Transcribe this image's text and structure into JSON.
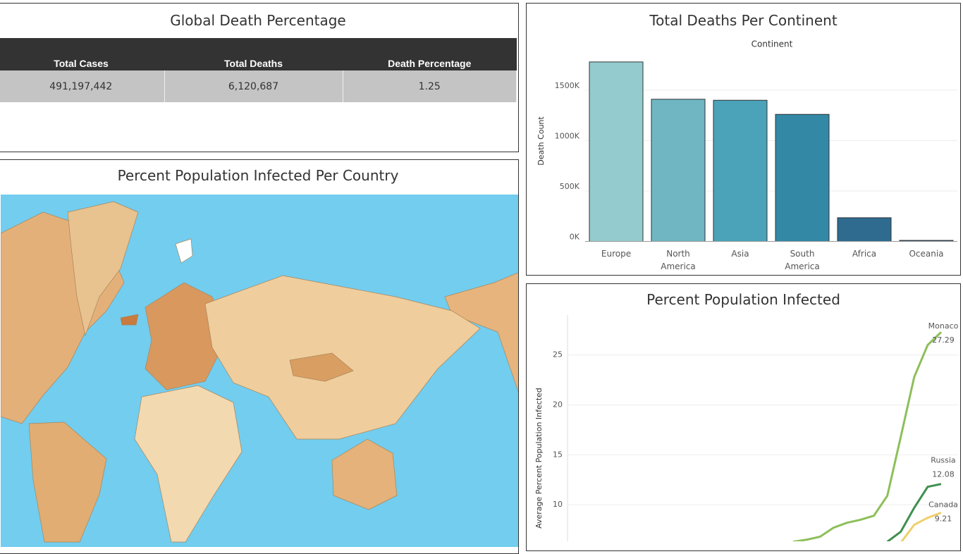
{
  "dashboard": {
    "table": {
      "title": "Global Death Percentage",
      "columns": [
        "Total Cases",
        "Total Deaths",
        "Death Percentage"
      ],
      "rows": [
        [
          "491,197,442",
          "6,120,687",
          "1.25"
        ]
      ]
    },
    "map": {
      "title": "Percent Population Infected Per Country"
    }
  },
  "chart_data": [
    {
      "type": "bar",
      "title": "Total Deaths Per Continent",
      "x_label": "Continent",
      "y_label": "Death Count",
      "categories": [
        "Europe",
        "North America",
        "Asia",
        "South America",
        "Africa",
        "Oceania"
      ],
      "values": [
        1780000,
        1410000,
        1400000,
        1260000,
        235000,
        10000
      ],
      "colors": [
        "#93cbcf",
        "#6fb6c2",
        "#4aa3b8",
        "#3388a6",
        "#2e6b8f",
        "#2a5a80"
      ],
      "ylim": [
        0,
        1870000
      ],
      "yticks": [
        {
          "value": 0,
          "label": "0K"
        },
        {
          "value": 500000,
          "label": "500K"
        },
        {
          "value": 1000000,
          "label": "1000K"
        },
        {
          "value": 1500000,
          "label": "1500K"
        }
      ],
      "grid": true
    },
    {
      "type": "line",
      "title": "Percent Population Infected",
      "y_label": "Average Percent Population Infected",
      "categories": [
        null,
        null,
        null,
        null,
        null,
        null,
        null,
        null,
        null,
        null,
        null,
        null
      ],
      "series": [
        {
          "name": "Monaco",
          "color": "#8dbf5a",
          "values": [
            6.3,
            6.5,
            6.8,
            7.7,
            8.2,
            8.5,
            8.9,
            10.9,
            16.8,
            22.8,
            26.0,
            27.29
          ]
        },
        {
          "name": "Russia",
          "color": "#3e8f4f",
          "values": [
            null,
            null,
            null,
            null,
            null,
            null,
            null,
            6.3,
            7.3,
            9.7,
            11.8,
            12.08
          ]
        },
        {
          "name": "Canada",
          "color": "#f0cf6a",
          "values": [
            null,
            null,
            null,
            null,
            null,
            null,
            null,
            null,
            6.2,
            8.0,
            8.7,
            9.21
          ]
        }
      ],
      "ylim": [
        5,
        29
      ],
      "yticks": [
        10,
        15,
        20,
        25
      ],
      "grid": true
    }
  ]
}
